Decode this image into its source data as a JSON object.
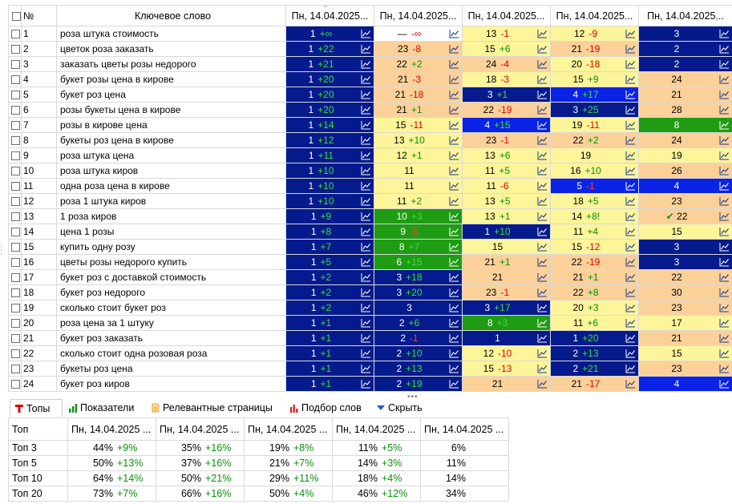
{
  "columns": {
    "checkbox": "",
    "num": "№",
    "keyword": "Ключевое слово",
    "dates": [
      "Пн, 14.04.2025...",
      "Пн, 14.04.2025...",
      "Пн, 14.04.2025...",
      "Пн, 14.04.2025...",
      "Пн, 14.04.2025..."
    ]
  },
  "colors": {
    "dark_navy": "#051a8c",
    "blue": "#0b23e6",
    "green": "#1f9c14",
    "yellow": "#fdf59a",
    "orange": "#fbd199",
    "positive": "#0a8f0a",
    "negative": "#e30000"
  },
  "rows": [
    {
      "n": "1",
      "kw": "роза штука стоимость",
      "cells": [
        {
          "v": "1",
          "d": "+∞",
          "c": "dark"
        },
        {
          "v": "—",
          "d": "-∞",
          "c": "white"
        },
        {
          "v": "13",
          "d": "-1",
          "c": "yellow"
        },
        {
          "v": "12",
          "d": "-9",
          "c": "yellow"
        },
        {
          "v": "3",
          "d": "",
          "c": "dark"
        }
      ]
    },
    {
      "n": "2",
      "kw": "цветок роза заказать",
      "cells": [
        {
          "v": "1",
          "d": "+22",
          "c": "dark"
        },
        {
          "v": "23",
          "d": "-8",
          "c": "orange"
        },
        {
          "v": "15",
          "d": "+6",
          "c": "yellow"
        },
        {
          "v": "21",
          "d": "-19",
          "c": "orange"
        },
        {
          "v": "2",
          "d": "",
          "c": "dark"
        }
      ]
    },
    {
      "n": "3",
      "kw": "заказать цветы розы недорого",
      "cells": [
        {
          "v": "1",
          "d": "+21",
          "c": "dark"
        },
        {
          "v": "22",
          "d": "+2",
          "c": "orange"
        },
        {
          "v": "24",
          "d": "-4",
          "c": "orange"
        },
        {
          "v": "20",
          "d": "-18",
          "c": "yellow"
        },
        {
          "v": "2",
          "d": "",
          "c": "dark"
        }
      ]
    },
    {
      "n": "4",
      "kw": "букет розы цена в кирове",
      "cells": [
        {
          "v": "1",
          "d": "+20",
          "c": "dark"
        },
        {
          "v": "21",
          "d": "-3",
          "c": "orange"
        },
        {
          "v": "18",
          "d": "-3",
          "c": "yellow"
        },
        {
          "v": "15",
          "d": "+9",
          "c": "yellow"
        },
        {
          "v": "24",
          "d": "",
          "c": "orange"
        }
      ]
    },
    {
      "n": "5",
      "kw": "букет роз цена",
      "cells": [
        {
          "v": "1",
          "d": "+20",
          "c": "dark"
        },
        {
          "v": "21",
          "d": "-18",
          "c": "orange"
        },
        {
          "v": "3",
          "d": "+1",
          "c": "dark"
        },
        {
          "v": "4",
          "d": "+17",
          "c": "blue"
        },
        {
          "v": "21",
          "d": "",
          "c": "orange"
        }
      ]
    },
    {
      "n": "6",
      "kw": "розы букеты цена в кирове",
      "cells": [
        {
          "v": "1",
          "d": "+20",
          "c": "dark"
        },
        {
          "v": "21",
          "d": "+1",
          "c": "orange"
        },
        {
          "v": "22",
          "d": "-19",
          "c": "orange"
        },
        {
          "v": "3",
          "d": "+25",
          "c": "dark"
        },
        {
          "v": "28",
          "d": "",
          "c": "orange"
        }
      ]
    },
    {
      "n": "7",
      "kw": "розы в кирове цена",
      "cells": [
        {
          "v": "1",
          "d": "+14",
          "c": "dark"
        },
        {
          "v": "15",
          "d": "-11",
          "c": "yellow"
        },
        {
          "v": "4",
          "d": "+15",
          "c": "blue"
        },
        {
          "v": "19",
          "d": "-11",
          "c": "yellow"
        },
        {
          "v": "8",
          "d": "",
          "c": "green"
        }
      ]
    },
    {
      "n": "8",
      "kw": "букеты роз цена в кирове",
      "cells": [
        {
          "v": "1",
          "d": "+12",
          "c": "dark"
        },
        {
          "v": "13",
          "d": "+10",
          "c": "yellow"
        },
        {
          "v": "23",
          "d": "-1",
          "c": "orange"
        },
        {
          "v": "22",
          "d": "+2",
          "c": "orange"
        },
        {
          "v": "24",
          "d": "",
          "c": "orange"
        }
      ]
    },
    {
      "n": "9",
      "kw": "роза штука цена",
      "cells": [
        {
          "v": "1",
          "d": "+11",
          "c": "dark"
        },
        {
          "v": "12",
          "d": "+1",
          "c": "yellow"
        },
        {
          "v": "13",
          "d": "+6",
          "c": "yellow"
        },
        {
          "v": "19",
          "d": "",
          "c": "yellow"
        },
        {
          "v": "19",
          "d": "",
          "c": "yellow"
        }
      ]
    },
    {
      "n": "10",
      "kw": "роза штука киров",
      "cells": [
        {
          "v": "1",
          "d": "+10",
          "c": "dark"
        },
        {
          "v": "11",
          "d": "",
          "c": "yellow"
        },
        {
          "v": "11",
          "d": "+5",
          "c": "yellow"
        },
        {
          "v": "16",
          "d": "+10",
          "c": "yellow"
        },
        {
          "v": "26",
          "d": "",
          "c": "orange"
        }
      ]
    },
    {
      "n": "11",
      "kw": "одна роза цена в кирове",
      "cells": [
        {
          "v": "1",
          "d": "+10",
          "c": "dark"
        },
        {
          "v": "11",
          "d": "",
          "c": "yellow"
        },
        {
          "v": "11",
          "d": "-6",
          "c": "yellow"
        },
        {
          "v": "5",
          "d": "-1",
          "c": "blue"
        },
        {
          "v": "4",
          "d": "",
          "c": "blue"
        }
      ]
    },
    {
      "n": "12",
      "kw": "роза 1 штука киров",
      "cells": [
        {
          "v": "1",
          "d": "+10",
          "c": "dark"
        },
        {
          "v": "11",
          "d": "+2",
          "c": "yellow"
        },
        {
          "v": "13",
          "d": "+5",
          "c": "yellow"
        },
        {
          "v": "18",
          "d": "+5",
          "c": "yellow"
        },
        {
          "v": "23",
          "d": "",
          "c": "orange"
        }
      ]
    },
    {
      "n": "13",
      "kw": "1 роза киров",
      "cells": [
        {
          "v": "1",
          "d": "+9",
          "c": "dark"
        },
        {
          "v": "10",
          "d": "+3",
          "c": "green"
        },
        {
          "v": "13",
          "d": "+1",
          "c": "yellow"
        },
        {
          "v": "14",
          "d": "+8!",
          "c": "yellow"
        },
        {
          "v": "22",
          "d": "",
          "c": "orange",
          "check": "✔"
        }
      ]
    },
    {
      "n": "14",
      "kw": "цена 1 розы",
      "cells": [
        {
          "v": "1",
          "d": "+8",
          "c": "dark"
        },
        {
          "v": "9",
          "d": "-8",
          "c": "green"
        },
        {
          "v": "1",
          "d": "+10",
          "c": "dark"
        },
        {
          "v": "11",
          "d": "+4",
          "c": "yellow"
        },
        {
          "v": "15",
          "d": "",
          "c": "yellow"
        }
      ]
    },
    {
      "n": "15",
      "kw": "купить одну розу",
      "cells": [
        {
          "v": "1",
          "d": "+7",
          "c": "dark"
        },
        {
          "v": "8",
          "d": "+7",
          "c": "green"
        },
        {
          "v": "15",
          "d": "",
          "c": "yellow"
        },
        {
          "v": "15",
          "d": "-12",
          "c": "yellow"
        },
        {
          "v": "3",
          "d": "",
          "c": "dark"
        }
      ]
    },
    {
      "n": "16",
      "kw": "цветы розы недорого купить",
      "cells": [
        {
          "v": "1",
          "d": "+5",
          "c": "dark"
        },
        {
          "v": "6",
          "d": "+15",
          "c": "green"
        },
        {
          "v": "21",
          "d": "+1",
          "c": "orange"
        },
        {
          "v": "22",
          "d": "-19",
          "c": "orange"
        },
        {
          "v": "3",
          "d": "",
          "c": "dark"
        }
      ]
    },
    {
      "n": "17",
      "kw": "букет роз с доставкой стоимость",
      "cells": [
        {
          "v": "1",
          "d": "+2",
          "c": "dark"
        },
        {
          "v": "3",
          "d": "+18",
          "c": "dark"
        },
        {
          "v": "21",
          "d": "",
          "c": "orange"
        },
        {
          "v": "21",
          "d": "+1",
          "c": "orange"
        },
        {
          "v": "22",
          "d": "",
          "c": "orange"
        }
      ]
    },
    {
      "n": "18",
      "kw": "букет роз недорого",
      "cells": [
        {
          "v": "1",
          "d": "+2",
          "c": "dark"
        },
        {
          "v": "3",
          "d": "+20",
          "c": "dark"
        },
        {
          "v": "23",
          "d": "-1",
          "c": "orange"
        },
        {
          "v": "22",
          "d": "+8",
          "c": "orange"
        },
        {
          "v": "30",
          "d": "",
          "c": "orange"
        }
      ]
    },
    {
      "n": "19",
      "kw": "сколько стоит букет роз",
      "cells": [
        {
          "v": "1",
          "d": "+2",
          "c": "dark"
        },
        {
          "v": "3",
          "d": "",
          "c": "dark"
        },
        {
          "v": "3",
          "d": "+17",
          "c": "dark"
        },
        {
          "v": "20",
          "d": "+3",
          "c": "yellow"
        },
        {
          "v": "23",
          "d": "",
          "c": "orange"
        }
      ]
    },
    {
      "n": "20",
      "kw": "роза цена за 1 штуку",
      "cells": [
        {
          "v": "1",
          "d": "+1",
          "c": "dark"
        },
        {
          "v": "2",
          "d": "+6",
          "c": "dark"
        },
        {
          "v": "8",
          "d": "+3",
          "c": "green"
        },
        {
          "v": "11",
          "d": "+6",
          "c": "yellow"
        },
        {
          "v": "17",
          "d": "",
          "c": "yellow"
        }
      ]
    },
    {
      "n": "21",
      "kw": "букет роз заказать",
      "cells": [
        {
          "v": "1",
          "d": "+1",
          "c": "dark"
        },
        {
          "v": "2",
          "d": "-1",
          "c": "dark"
        },
        {
          "v": "1",
          "d": "",
          "c": "dark"
        },
        {
          "v": "1",
          "d": "+20",
          "c": "dark"
        },
        {
          "v": "21",
          "d": "",
          "c": "orange"
        }
      ]
    },
    {
      "n": "22",
      "kw": "сколько стоит одна розовая роза",
      "cells": [
        {
          "v": "1",
          "d": "+1",
          "c": "dark"
        },
        {
          "v": "2",
          "d": "+10",
          "c": "dark"
        },
        {
          "v": "12",
          "d": "-10",
          "c": "yellow"
        },
        {
          "v": "2",
          "d": "+13",
          "c": "dark"
        },
        {
          "v": "15",
          "d": "",
          "c": "yellow"
        }
      ]
    },
    {
      "n": "23",
      "kw": "букеты роз цена",
      "cells": [
        {
          "v": "1",
          "d": "+1",
          "c": "dark"
        },
        {
          "v": "2",
          "d": "+13",
          "c": "dark"
        },
        {
          "v": "15",
          "d": "-13",
          "c": "yellow"
        },
        {
          "v": "2",
          "d": "+21",
          "c": "dark"
        },
        {
          "v": "23",
          "d": "",
          "c": "orange"
        }
      ]
    },
    {
      "n": "24",
      "kw": "букет роз киров",
      "cells": [
        {
          "v": "1",
          "d": "+1",
          "c": "dark"
        },
        {
          "v": "2",
          "d": "+19",
          "c": "dark"
        },
        {
          "v": "21",
          "d": "",
          "c": "orange"
        },
        {
          "v": "21",
          "d": "-17",
          "c": "orange"
        },
        {
          "v": "4",
          "d": "",
          "c": "blue"
        }
      ]
    }
  ],
  "tabs": [
    {
      "label": "Топы",
      "icon": "top-icon",
      "active": true
    },
    {
      "label": "Показатели",
      "icon": "bar-chart-icon",
      "active": false
    },
    {
      "label": "Релевантные страницы",
      "icon": "document-icon",
      "active": false
    },
    {
      "label": "Подбор слов",
      "icon": "column-chart-icon",
      "active": false
    },
    {
      "label": "Скрыть",
      "icon": "triangle-down-icon",
      "active": false
    }
  ],
  "tops": {
    "header_label": "Топ",
    "dates": [
      "Пн, 14.04.2025 ...",
      "Пн, 14.04.2025 ...",
      "Пн, 14.04.2025 ...",
      "Пн, 14.04.2025 ...",
      "Пн, 14.04.2025 ..."
    ],
    "rows": [
      {
        "label": "Топ 3",
        "cells": [
          {
            "v": "44%",
            "d": "+9%"
          },
          {
            "v": "35%",
            "d": "+16%"
          },
          {
            "v": "19%",
            "d": "+8%"
          },
          {
            "v": "11%",
            "d": "+5%"
          },
          {
            "v": "6%",
            "d": ""
          }
        ]
      },
      {
        "label": "Топ 5",
        "cells": [
          {
            "v": "50%",
            "d": "+13%"
          },
          {
            "v": "37%",
            "d": "+16%"
          },
          {
            "v": "21%",
            "d": "+7%"
          },
          {
            "v": "14%",
            "d": "+3%"
          },
          {
            "v": "11%",
            "d": ""
          }
        ]
      },
      {
        "label": "Топ 10",
        "cells": [
          {
            "v": "64%",
            "d": "+14%"
          },
          {
            "v": "50%",
            "d": "+21%"
          },
          {
            "v": "29%",
            "d": "+11%"
          },
          {
            "v": "18%",
            "d": "+4%"
          },
          {
            "v": "14%",
            "d": ""
          }
        ]
      },
      {
        "label": "Топ 20",
        "cells": [
          {
            "v": "73%",
            "d": "+7%"
          },
          {
            "v": "66%",
            "d": "+16%"
          },
          {
            "v": "50%",
            "d": "+4%"
          },
          {
            "v": "46%",
            "d": "+12%"
          },
          {
            "v": "34%",
            "d": ""
          }
        ]
      }
    ]
  }
}
